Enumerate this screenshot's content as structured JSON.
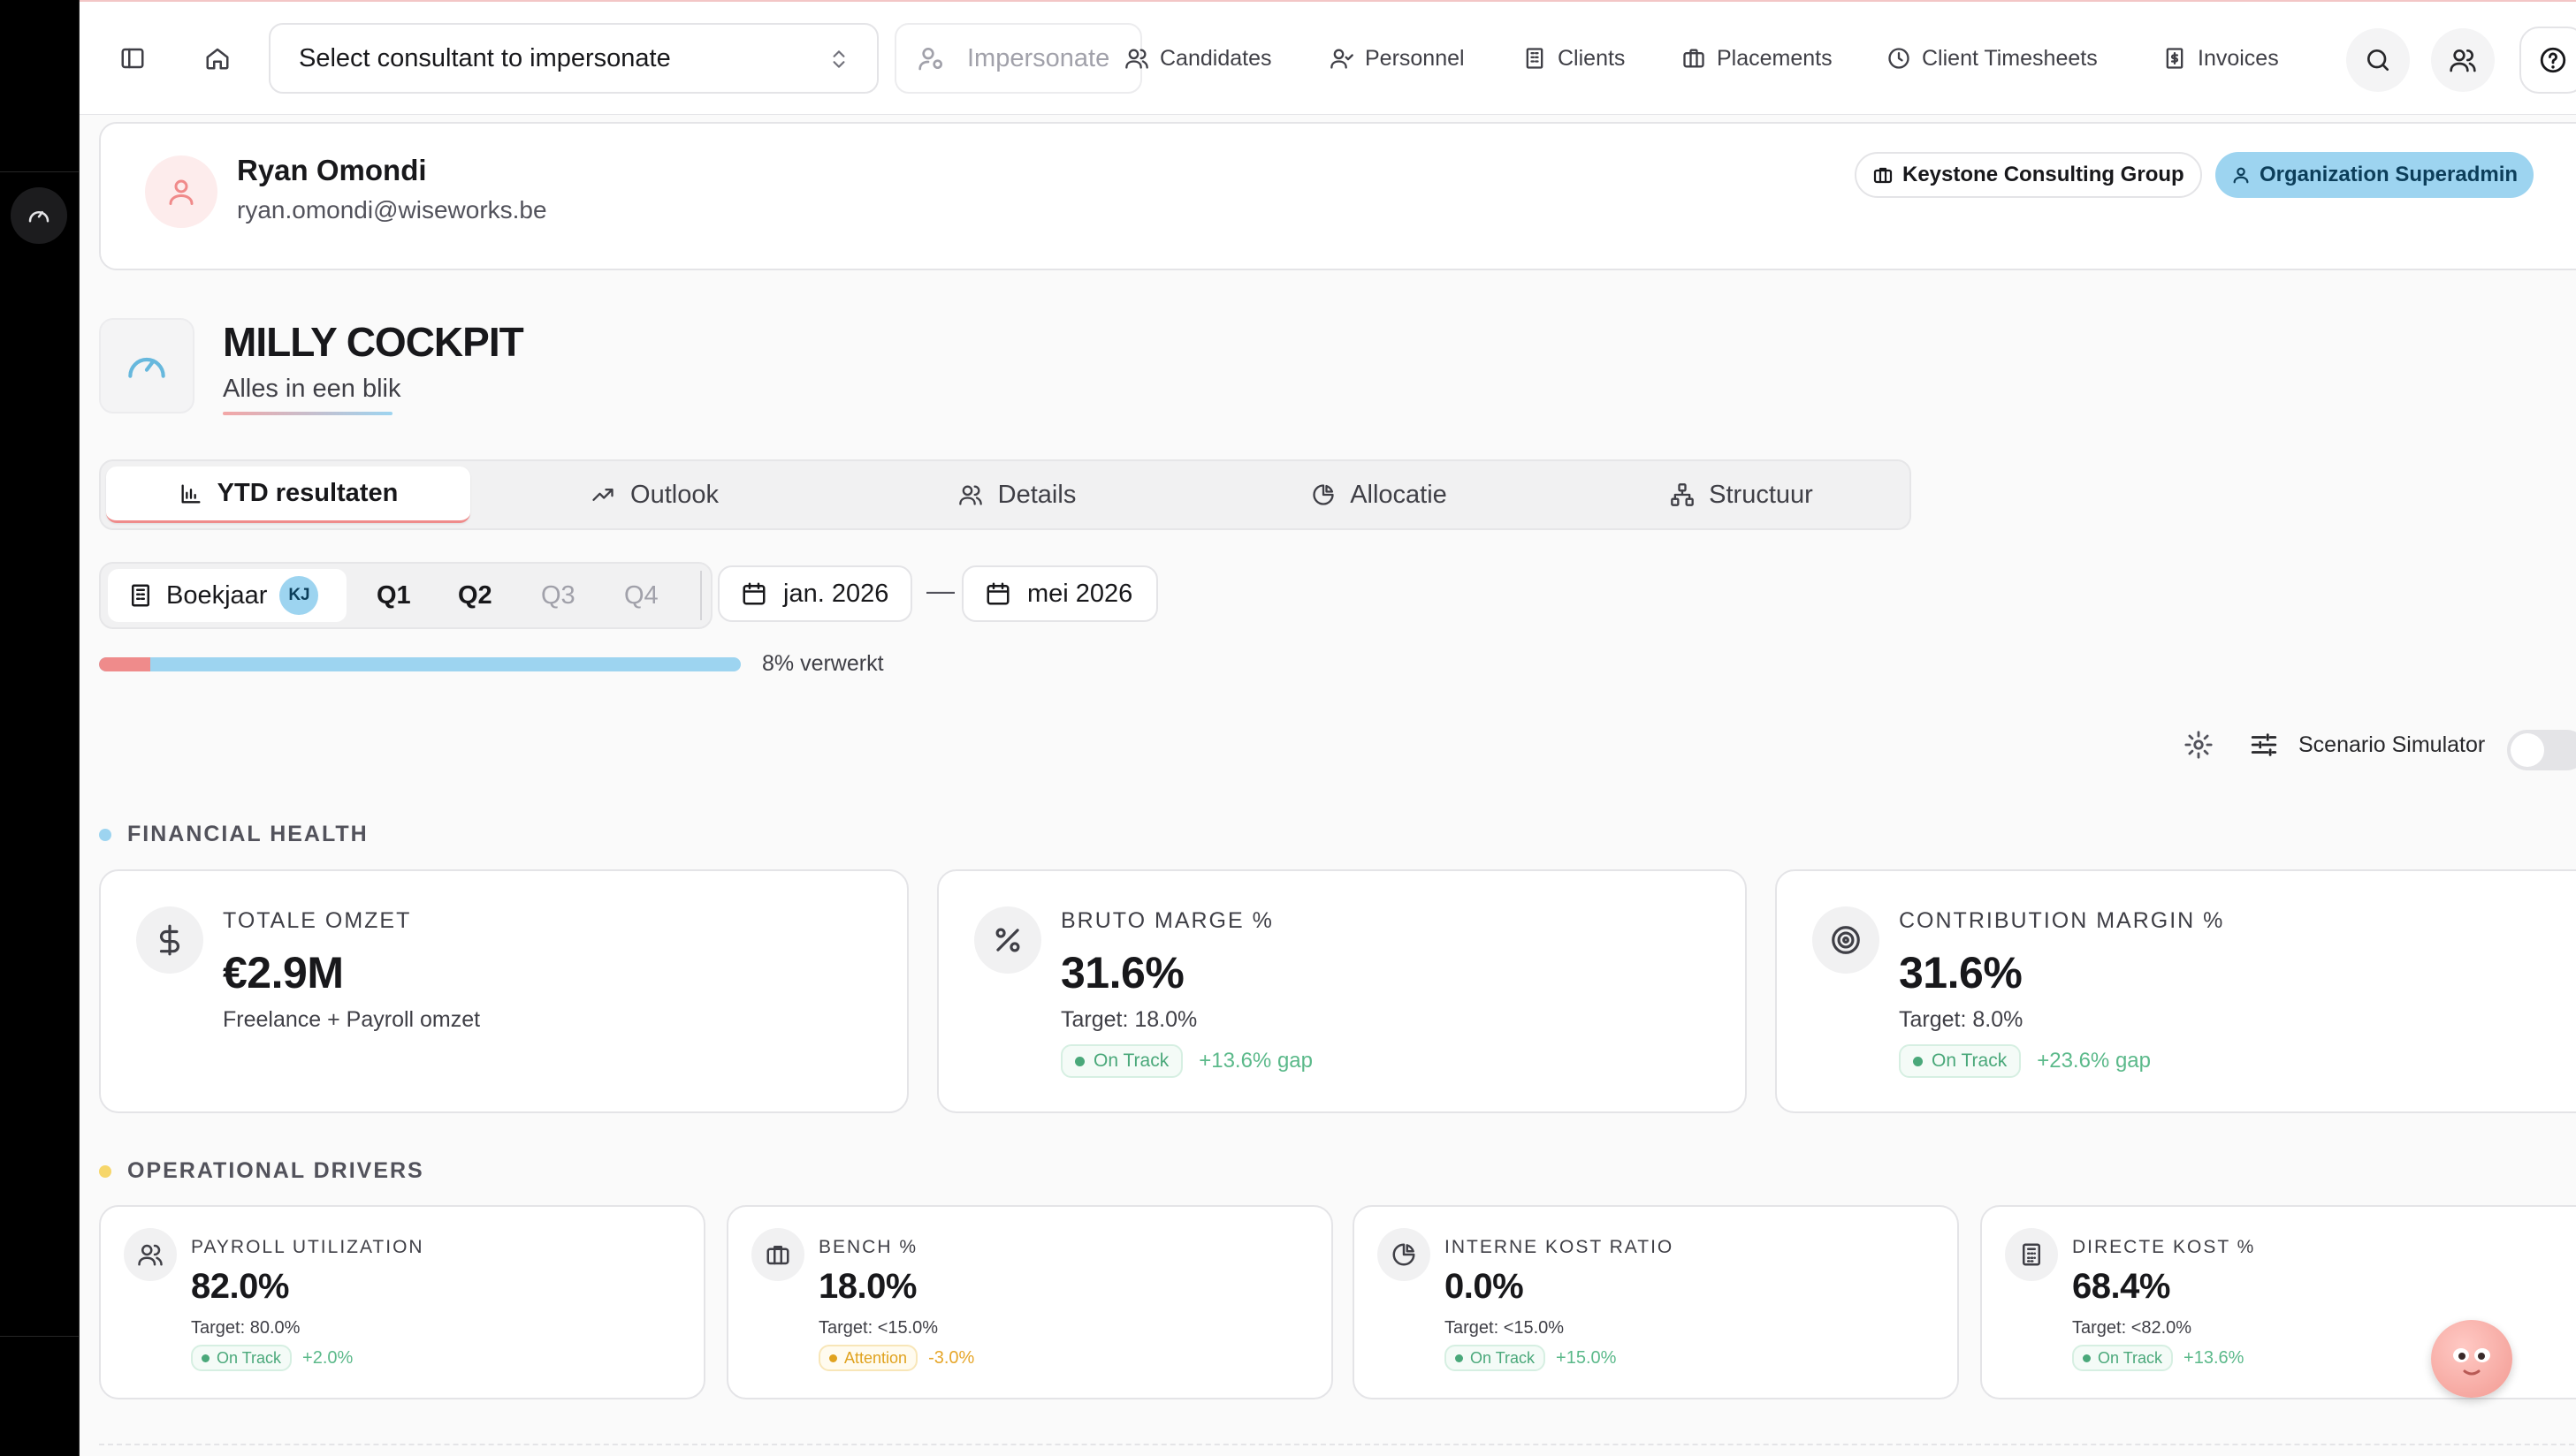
{
  "topbar": {
    "consultant_placeholder": "Select consultant to impersonate",
    "impersonate_label": "Impersonate",
    "nav": [
      {
        "label": "Candidates",
        "icon": "users-icon"
      },
      {
        "label": "Personnel",
        "icon": "user-check-icon"
      },
      {
        "label": "Clients",
        "icon": "building-icon"
      },
      {
        "label": "Placements",
        "icon": "briefcase-icon"
      },
      {
        "label": "Client Timesheets",
        "icon": "clock-icon"
      },
      {
        "label": "Invoices",
        "icon": "receipt-icon"
      }
    ]
  },
  "user": {
    "name": "Ryan Omondi",
    "email": "ryan.omondi@wiseworks.be",
    "organization": "Keystone Consulting Group",
    "role": "Organization Superadmin"
  },
  "page": {
    "title": "MILLY COCKPIT",
    "subtitle": "Alles in een blik"
  },
  "tabs": [
    {
      "label": "YTD resultaten",
      "icon": "bar-chart-icon",
      "active": true
    },
    {
      "label": "Outlook",
      "icon": "trending-up-icon",
      "active": false
    },
    {
      "label": "Details",
      "icon": "users-icon",
      "active": false
    },
    {
      "label": "Allocatie",
      "icon": "pie-chart-icon",
      "active": false
    },
    {
      "label": "Structuur",
      "icon": "org-chart-icon",
      "active": false
    }
  ],
  "period": {
    "fiscal_year_label": "Boekjaar",
    "fiscal_year_badge": "KJ",
    "quarters": [
      "Q1",
      "Q2",
      "Q3",
      "Q4"
    ],
    "start_date": "jan. 2026",
    "end_date": "mei 2026",
    "separator": "—"
  },
  "progress": {
    "percent": 8,
    "label": "8% verwerkt"
  },
  "scenario": {
    "label": "Scenario Simulator",
    "enabled": false
  },
  "colors": {
    "accent_blue": "#9dd4f0",
    "accent_red": "#ef8b8b",
    "ok_green": "#4aa87a",
    "warn_amber": "#e0a21e"
  },
  "financial_health": {
    "title": "FINANCIAL HEALTH",
    "cards": [
      {
        "label": "TOTALE OMZET",
        "value": "€2.9M",
        "sub": "Freelance + Payroll omzet",
        "icon": "dollar-icon"
      },
      {
        "label": "BRUTO MARGE %",
        "value": "31.6%",
        "target": "Target: 18.0%",
        "status": "On Track",
        "gap": "+13.6% gap",
        "icon": "percent-icon"
      },
      {
        "label": "CONTRIBUTION MARGIN %",
        "value": "31.6%",
        "target": "Target: 8.0%",
        "status": "On Track",
        "gap": "+23.6% gap",
        "icon": "target-icon"
      }
    ]
  },
  "operational_drivers": {
    "title": "OPERATIONAL DRIVERS",
    "cards": [
      {
        "label": "PAYROLL UTILIZATION",
        "value": "82.0%",
        "target": "Target: 80.0%",
        "status": "On Track",
        "gap": "+2.0%",
        "icon": "users-icon"
      },
      {
        "label": "BENCH %",
        "value": "18.0%",
        "target": "Target: <15.0%",
        "status": "Attention",
        "gap": "-3.0%",
        "icon": "briefcase-icon"
      },
      {
        "label": "INTERNE KOST RATIO",
        "value": "0.0%",
        "target": "Target: <15.0%",
        "status": "On Track",
        "gap": "+15.0%",
        "icon": "pie-chart-icon"
      },
      {
        "label": "DIRECTE KOST %",
        "value": "68.4%",
        "target": "Target: <82.0%",
        "status": "On Track",
        "gap": "+13.6%",
        "icon": "calculator-icon"
      }
    ]
  }
}
